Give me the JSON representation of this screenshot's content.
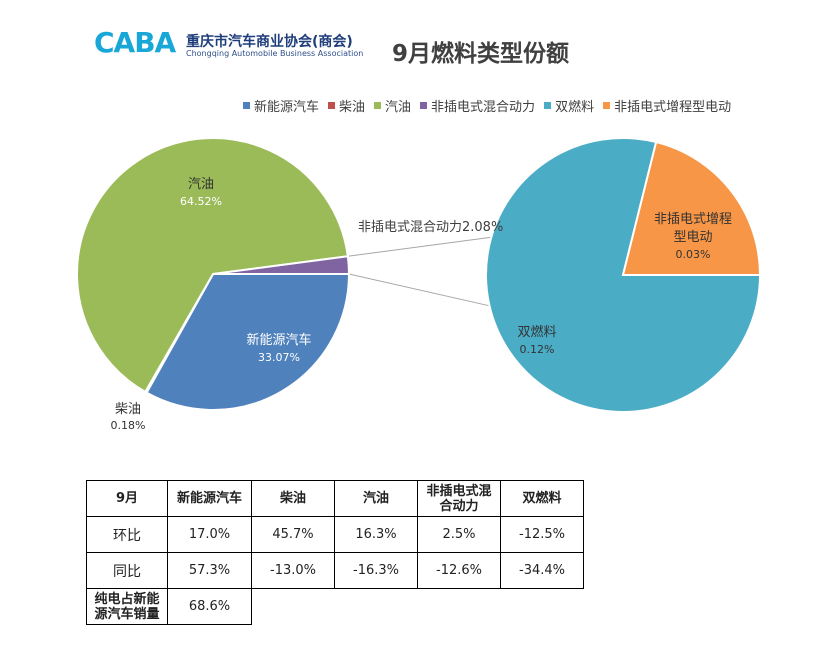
{
  "header": {
    "logo_mark": "CABA",
    "logo_cn": "重庆市汽车商业协会(商会)",
    "logo_en": "Chongqing Automobile Business Association"
  },
  "chart_data": {
    "type": "pie",
    "title": "9月燃料类型份额",
    "legend": [
      {
        "name": "新能源汽车",
        "color": "#4f81bd"
      },
      {
        "name": "柴油",
        "color": "#c0504d"
      },
      {
        "name": "汽油",
        "color": "#9bbb59"
      },
      {
        "name": "非插电式混合动力",
        "color": "#8064a2"
      },
      {
        "name": "双燃料",
        "color": "#4bacc6"
      },
      {
        "name": "非插电式增程型电动",
        "color": "#f79646"
      }
    ],
    "main_pie": {
      "slices": [
        {
          "name": "新能源汽车",
          "value": 33.07,
          "label": "新能源汽车",
          "pct": "33.07%",
          "color": "#4f81bd"
        },
        {
          "name": "柴油",
          "value": 0.18,
          "label": "柴油",
          "pct": "0.18%",
          "color": "#c0504d"
        },
        {
          "name": "汽油",
          "value": 64.52,
          "label": "汽油",
          "pct": "64.52%",
          "color": "#9bbb59"
        },
        {
          "name": "非插电式混合动力",
          "value": 2.08,
          "label": "非插电式混合动力2.08%",
          "pct": "",
          "color": "#8064a2"
        }
      ]
    },
    "detail_pie": {
      "slices": [
        {
          "name": "双燃料",
          "value": 0.12,
          "label": "双燃料",
          "pct": "0.12%",
          "color": "#4bacc6"
        },
        {
          "name": "非插电式增程型电动",
          "value": 0.03,
          "label_lines": [
            "非插电式增程",
            "型电动"
          ],
          "pct": "0.03%",
          "color": "#f79646"
        }
      ]
    }
  },
  "table": {
    "header": [
      "9月",
      "新能源汽车",
      "柴油",
      "汽油",
      "非插电式混合动力",
      "双燃料"
    ],
    "rows": [
      {
        "label": "环比",
        "values": [
          "17.0%",
          "45.7%",
          "16.3%",
          "2.5%",
          "-12.5%"
        ]
      },
      {
        "label": "同比",
        "values": [
          "57.3%",
          "-13.0%",
          "-16.3%",
          "-12.6%",
          "-34.4%"
        ]
      }
    ],
    "extra": {
      "label": "纯电占新能源汽车销量",
      "value": "68.6%"
    }
  }
}
